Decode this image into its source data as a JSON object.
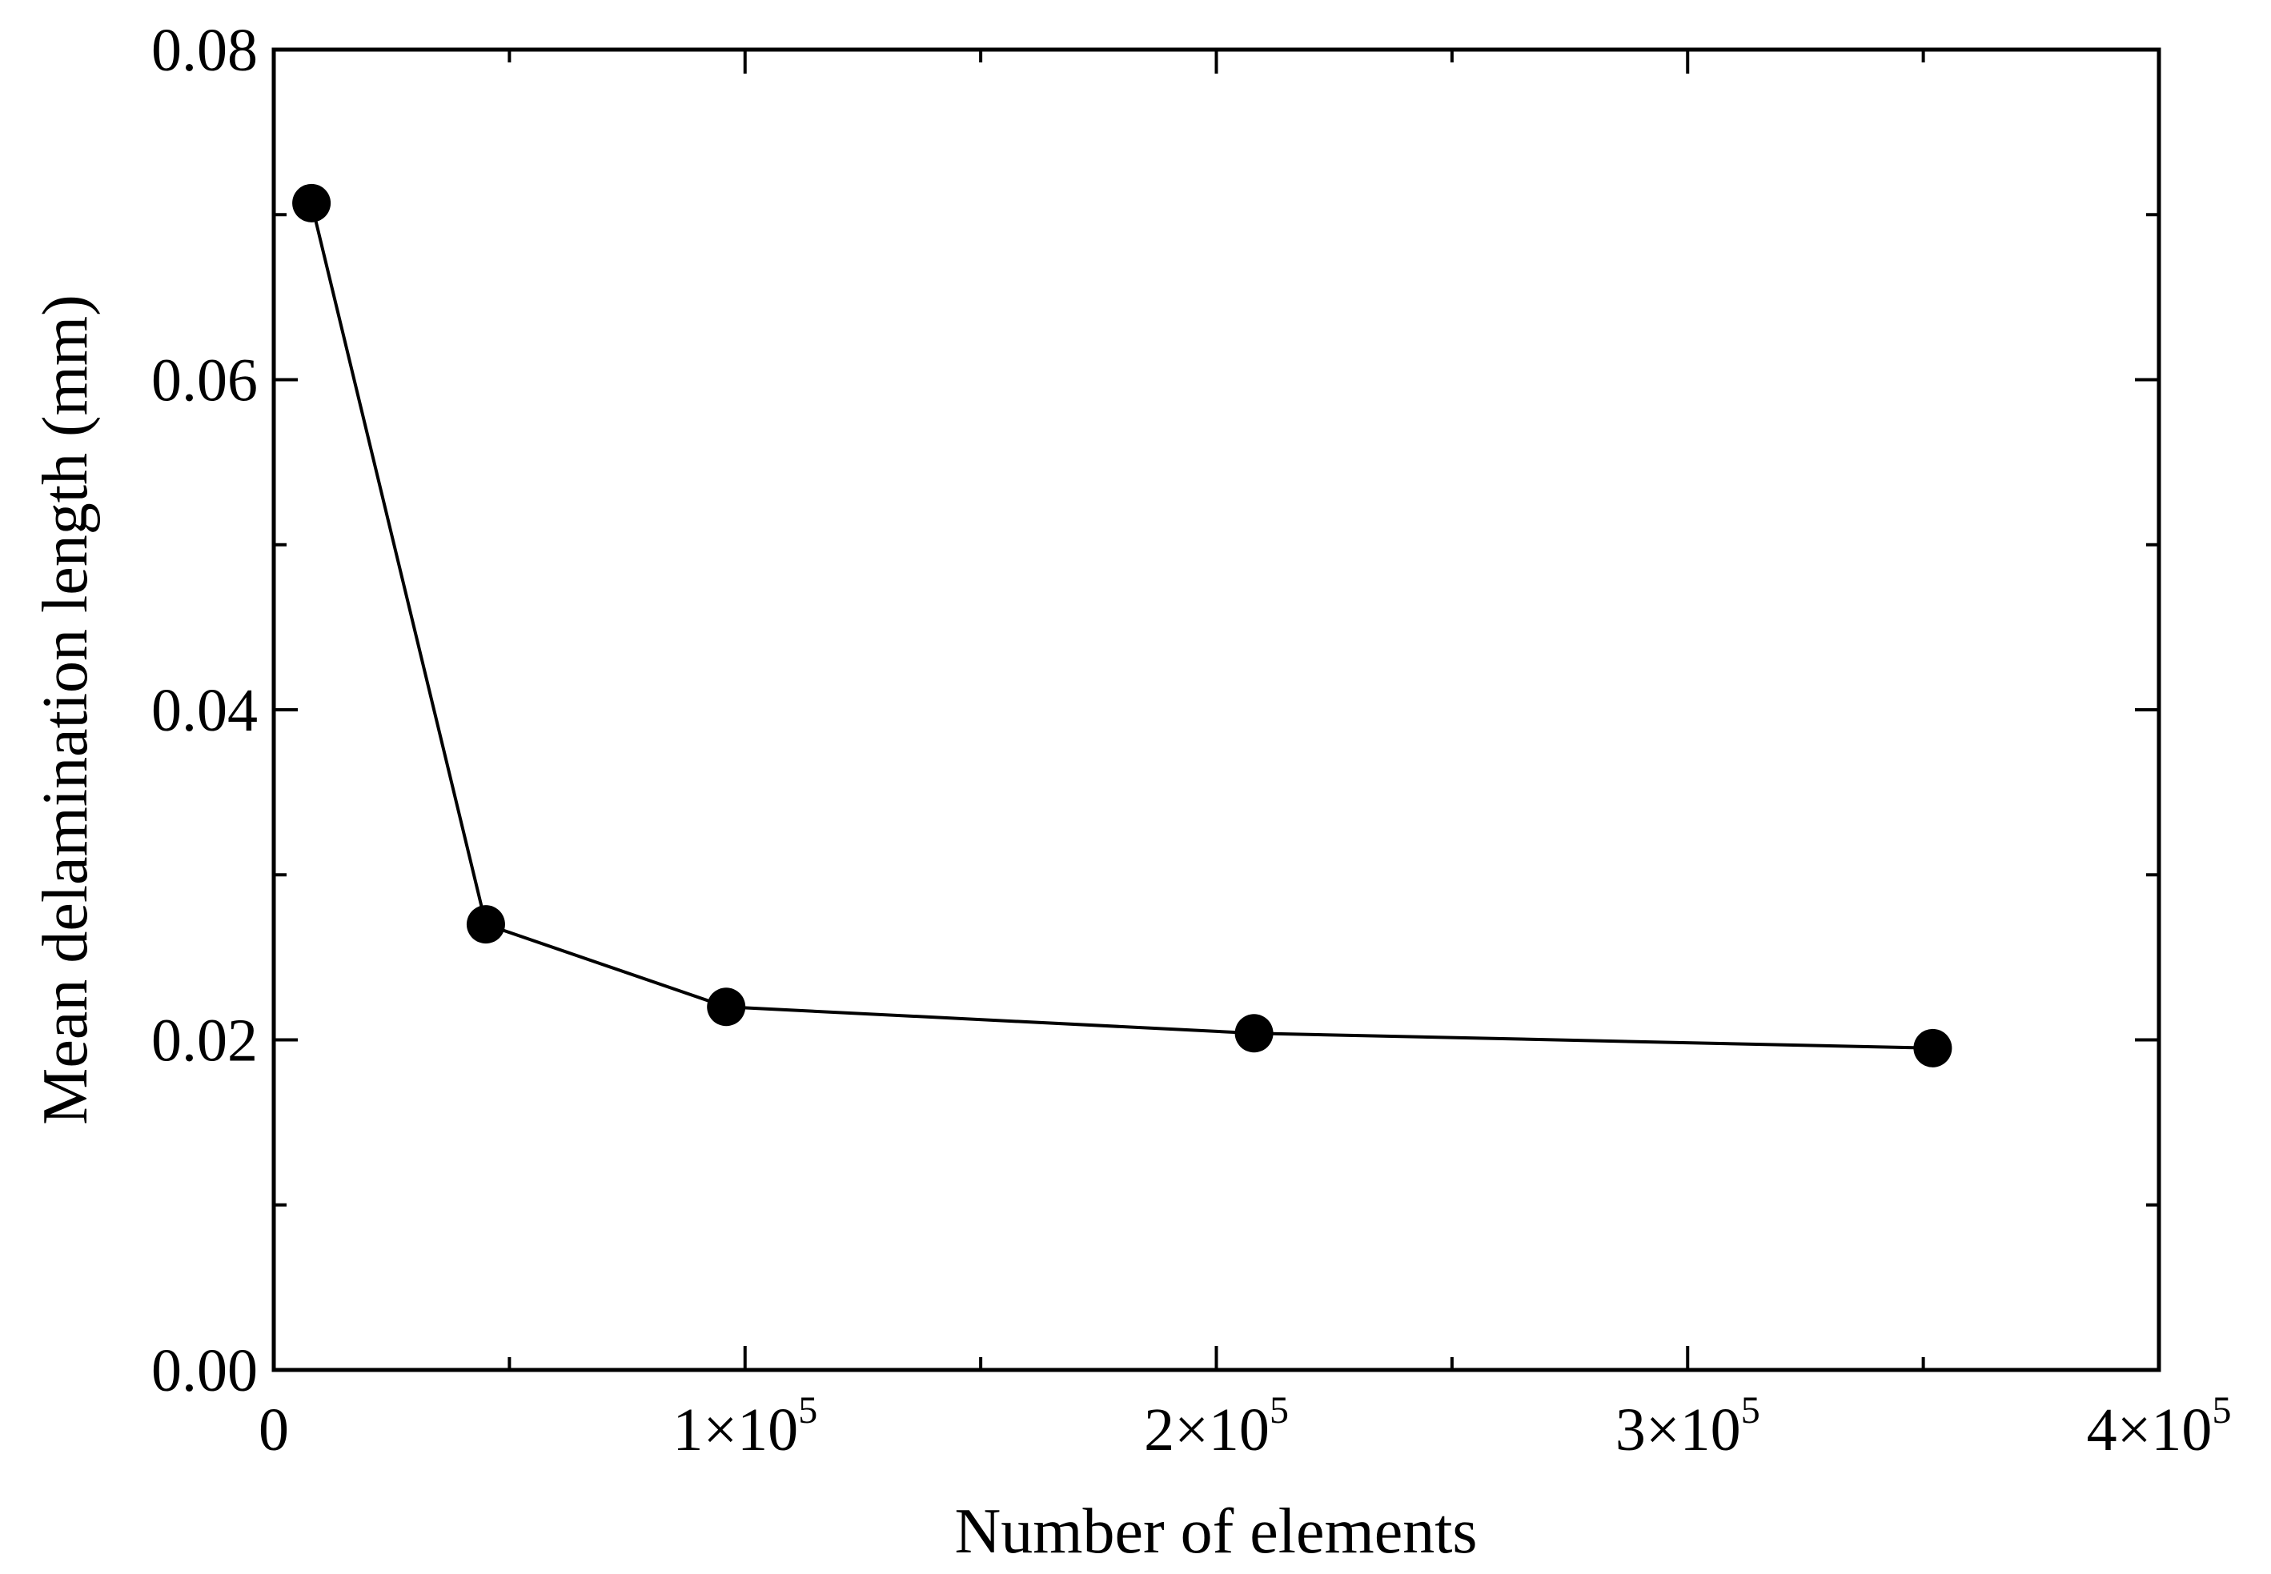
{
  "chart_data": {
    "type": "line",
    "title": "",
    "xlabel": "Number of elements",
    "ylabel": "Mean delamination length (mm)",
    "xlim": [
      0,
      400000
    ],
    "ylim": [
      0,
      0.08
    ],
    "grid": false,
    "x_ticks": [
      {
        "value": 0,
        "label": "0"
      },
      {
        "value": 100000,
        "label": "1×10",
        "exp": "5"
      },
      {
        "value": 200000,
        "label": "2×10",
        "exp": "5"
      },
      {
        "value": 300000,
        "label": "3×10",
        "exp": "5"
      },
      {
        "value": 400000,
        "label": "4×10",
        "exp": "5"
      }
    ],
    "y_ticks": [
      {
        "value": 0,
        "label": "0.00"
      },
      {
        "value": 0.02,
        "label": "0.02"
      },
      {
        "value": 0.04,
        "label": "0.04"
      },
      {
        "value": 0.06,
        "label": "0.06"
      },
      {
        "value": 0.08,
        "label": "0.08"
      }
    ],
    "series": [
      {
        "marker": "circle",
        "color": "#000000",
        "x": [
          8000,
          45000,
          96000,
          208000,
          352000
        ],
        "y": [
          0.0707,
          0.027,
          0.022,
          0.0204,
          0.0195
        ]
      }
    ]
  }
}
